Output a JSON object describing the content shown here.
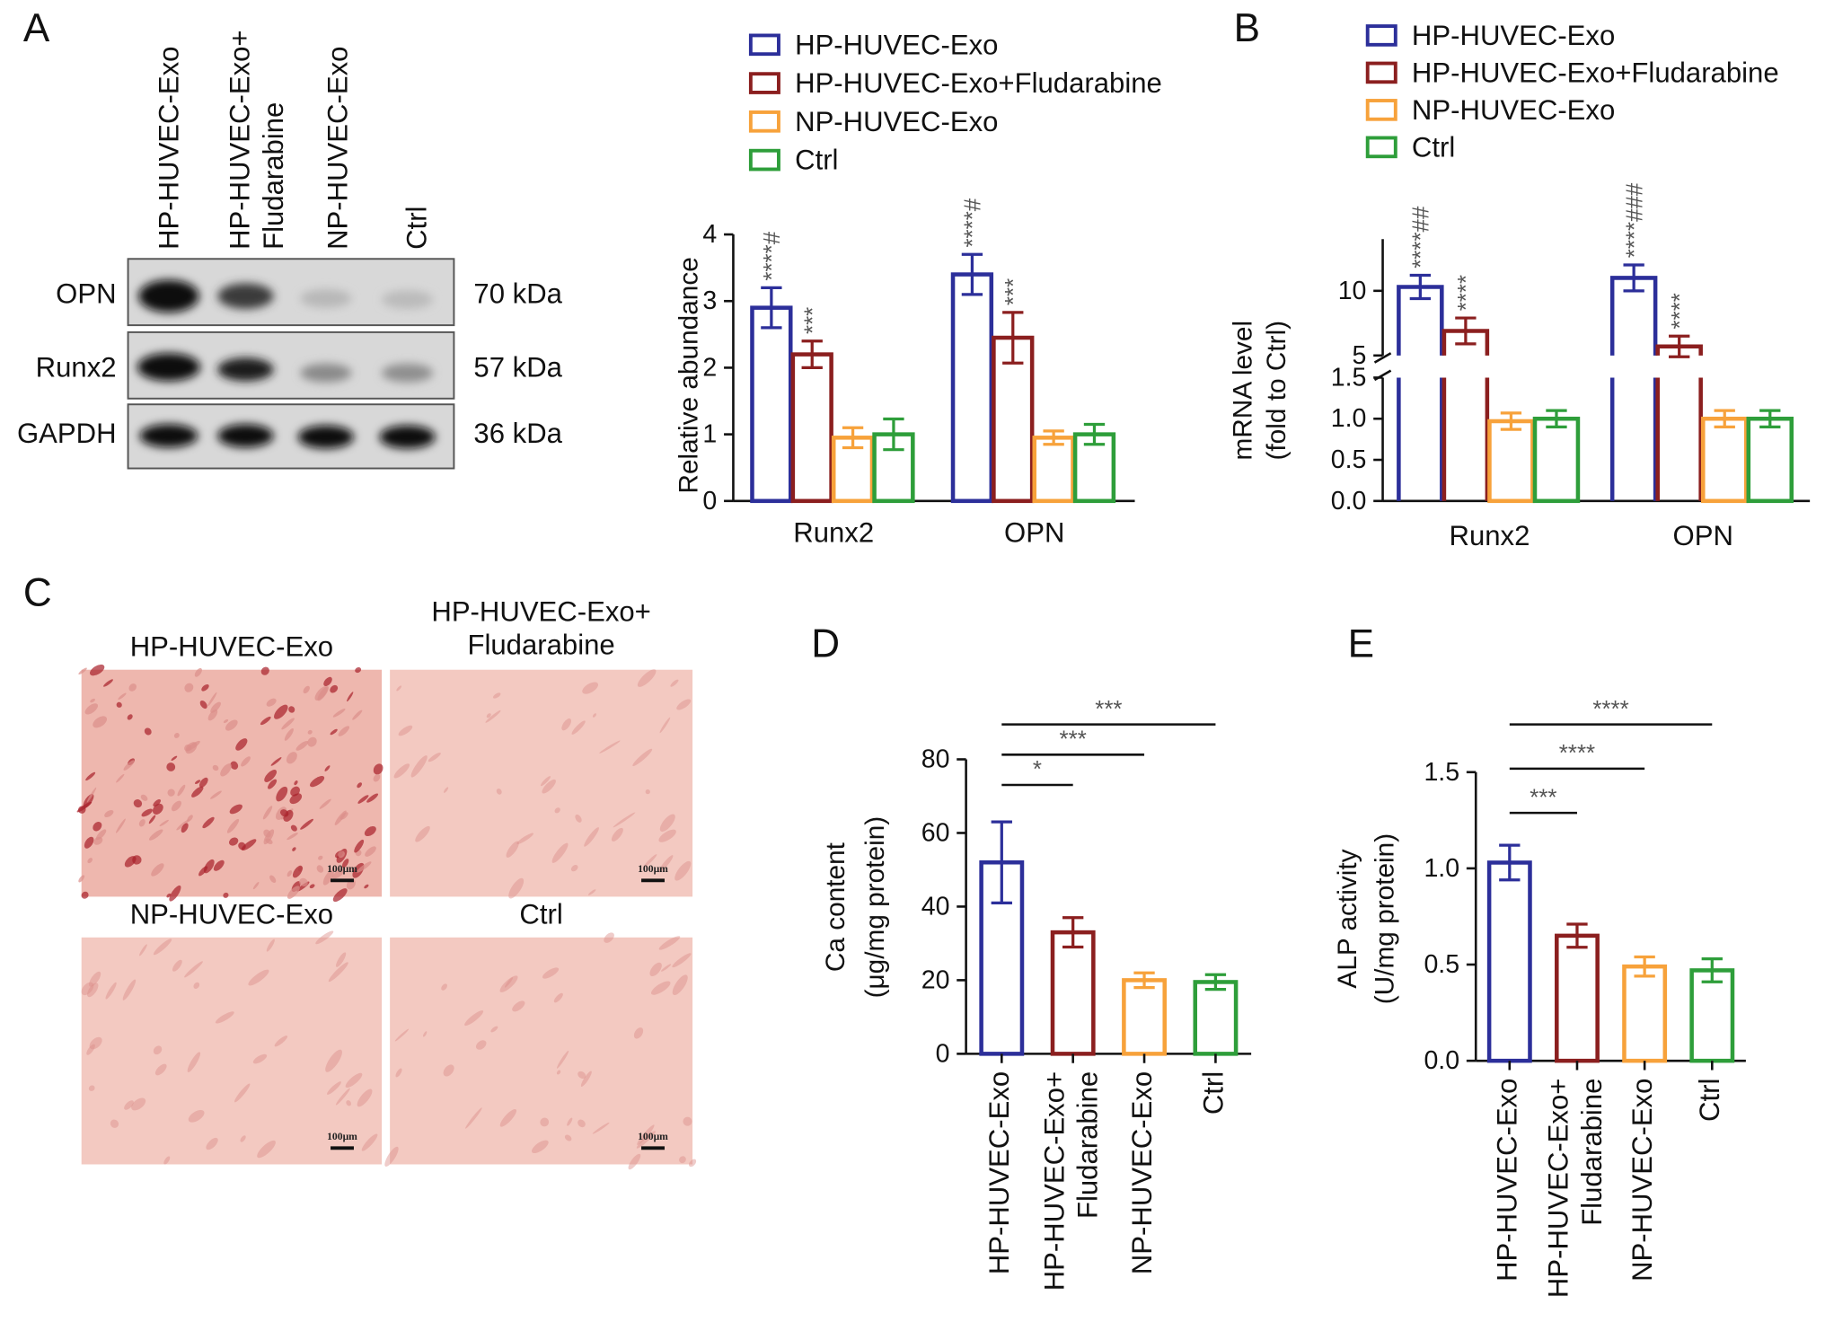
{
  "panels": [
    "A",
    "B",
    "C",
    "D",
    "E"
  ],
  "blot": {
    "lanes": [
      "HP-HUVEC-Exo",
      "HP-HUVEC-Exo+\nFludarabine",
      "NP-HUVEC-Exo",
      "Ctrl"
    ],
    "proteins": [
      "OPN",
      "Runx2",
      "GAPDH"
    ],
    "sizes": [
      "70 kDa",
      "57 kDa",
      "36 kDa"
    ]
  },
  "micrographs": [
    {
      "label": "HP-HUVEC-Exo",
      "scale": "100μm"
    },
    {
      "label": "HP-HUVEC-Exo+\nFludarabine",
      "scale": "100μm"
    },
    {
      "label": "NP-HUVEC-Exo",
      "scale": "100μm"
    },
    {
      "label": "Ctrl",
      "scale": "100μm"
    }
  ],
  "chart_data": [
    {
      "type": "bar",
      "ylabel": "Relative abundance",
      "categories": [
        "Runx2",
        "OPN"
      ],
      "ylim": [
        0,
        4
      ],
      "yticks": [
        0,
        1,
        2,
        3,
        4
      ],
      "series": [
        {
          "name": "HP-HUVEC-Exo",
          "color": "#2c2f9a",
          "values": [
            2.9,
            3.4
          ],
          "errors": [
            0.3,
            0.3
          ],
          "markers": [
            "****#",
            "****#"
          ]
        },
        {
          "name": "HP-HUVEC-Exo+Fludarabine",
          "color": "#8b1f1f",
          "values": [
            2.2,
            2.45
          ],
          "errors": [
            0.2,
            0.38
          ],
          "markers": [
            "***",
            "***"
          ]
        },
        {
          "name": "NP-HUVEC-Exo",
          "color": "#f7a23b",
          "values": [
            0.95,
            0.95
          ],
          "errors": [
            0.15,
            0.1
          ],
          "markers": [
            null,
            null
          ]
        },
        {
          "name": "Ctrl",
          "color": "#2e9e3a",
          "values": [
            1.0,
            1.0
          ],
          "errors": [
            0.23,
            0.15
          ],
          "markers": [
            null,
            null
          ]
        }
      ]
    },
    {
      "type": "bar",
      "ylabel": [
        "mRNA level",
        "(fold to Ctrl)"
      ],
      "categories": [
        "Runx2",
        "OPN"
      ],
      "ylim": [
        0,
        14
      ],
      "ybreak": [
        1.5,
        5
      ],
      "yticks": [
        {
          "value": 0,
          "label": "0.0"
        },
        {
          "value": 0.5,
          "label": "0.5"
        },
        {
          "value": 1,
          "label": "1.0"
        },
        {
          "value": 1.5,
          "label": "1.5"
        },
        5,
        10
      ],
      "series": [
        {
          "name": "HP-HUVEC-Exo",
          "color": "#2c2f9a",
          "values": [
            10.3,
            11
          ],
          "errors": [
            0.9,
            1.0
          ],
          "markers": [
            "****##",
            "****###"
          ]
        },
        {
          "name": "HP-HUVEC-Exo+Fludarabine",
          "color": "#8b1f1f",
          "values": [
            6.9,
            5.7
          ],
          "errors": [
            1.0,
            0.8
          ],
          "markers": [
            "****",
            "****"
          ]
        },
        {
          "name": "NP-HUVEC-Exo",
          "color": "#f7a23b",
          "values": [
            0.97,
            1.0
          ],
          "errors": [
            0.1,
            0.1
          ],
          "markers": [
            null,
            null
          ]
        },
        {
          "name": "Ctrl",
          "color": "#2e9e3a",
          "values": [
            1.0,
            1.0
          ],
          "errors": [
            0.1,
            0.1
          ],
          "markers": [
            null,
            null
          ]
        }
      ]
    },
    {
      "type": "bar",
      "ylabel": [
        "Ca content",
        "(μg/mg protein)"
      ],
      "categories": [
        "HP-HUVEC-Exo",
        "HP-HUVEC-Exo+\nFludarabine",
        "NP-HUVEC-Exo",
        "Ctrl"
      ],
      "values": [
        52,
        33,
        20,
        19.5
      ],
      "errors": [
        11,
        4,
        2,
        2
      ],
      "colors": [
        "#2c2f9a",
        "#8b1f1f",
        "#f7a23b",
        "#2e9e3a"
      ],
      "ylim": [
        0,
        80
      ],
      "yticks": [
        0,
        20,
        40,
        60,
        80
      ],
      "comparisons": [
        {
          "from": 0,
          "to": 1,
          "label": "*"
        },
        {
          "from": 0,
          "to": 2,
          "label": "***"
        },
        {
          "from": 0,
          "to": 3,
          "label": "***"
        }
      ]
    },
    {
      "type": "bar",
      "ylabel": [
        "ALP activity",
        "(U/mg protein)"
      ],
      "categories": [
        "HP-HUVEC-Exo",
        "HP-HUVEC-Exo+\nFludarabine",
        "NP-HUVEC-Exo",
        "Ctrl"
      ],
      "values": [
        1.03,
        0.65,
        0.49,
        0.47
      ],
      "errors": [
        0.09,
        0.06,
        0.05,
        0.06
      ],
      "colors": [
        "#2c2f9a",
        "#8b1f1f",
        "#f7a23b",
        "#2e9e3a"
      ],
      "ylim": [
        0,
        1.5
      ],
      "yticks": [
        {
          "value": 0,
          "label": "0.0"
        },
        {
          "value": 0.5,
          "label": "0.5"
        },
        {
          "value": 1,
          "label": "1.0"
        },
        {
          "value": 1.5,
          "label": "1.5"
        }
      ],
      "comparisons": [
        {
          "from": 0,
          "to": 1,
          "label": "***"
        },
        {
          "from": 0,
          "to": 2,
          "label": "****"
        },
        {
          "from": 0,
          "to": 3,
          "label": "****"
        }
      ]
    }
  ]
}
